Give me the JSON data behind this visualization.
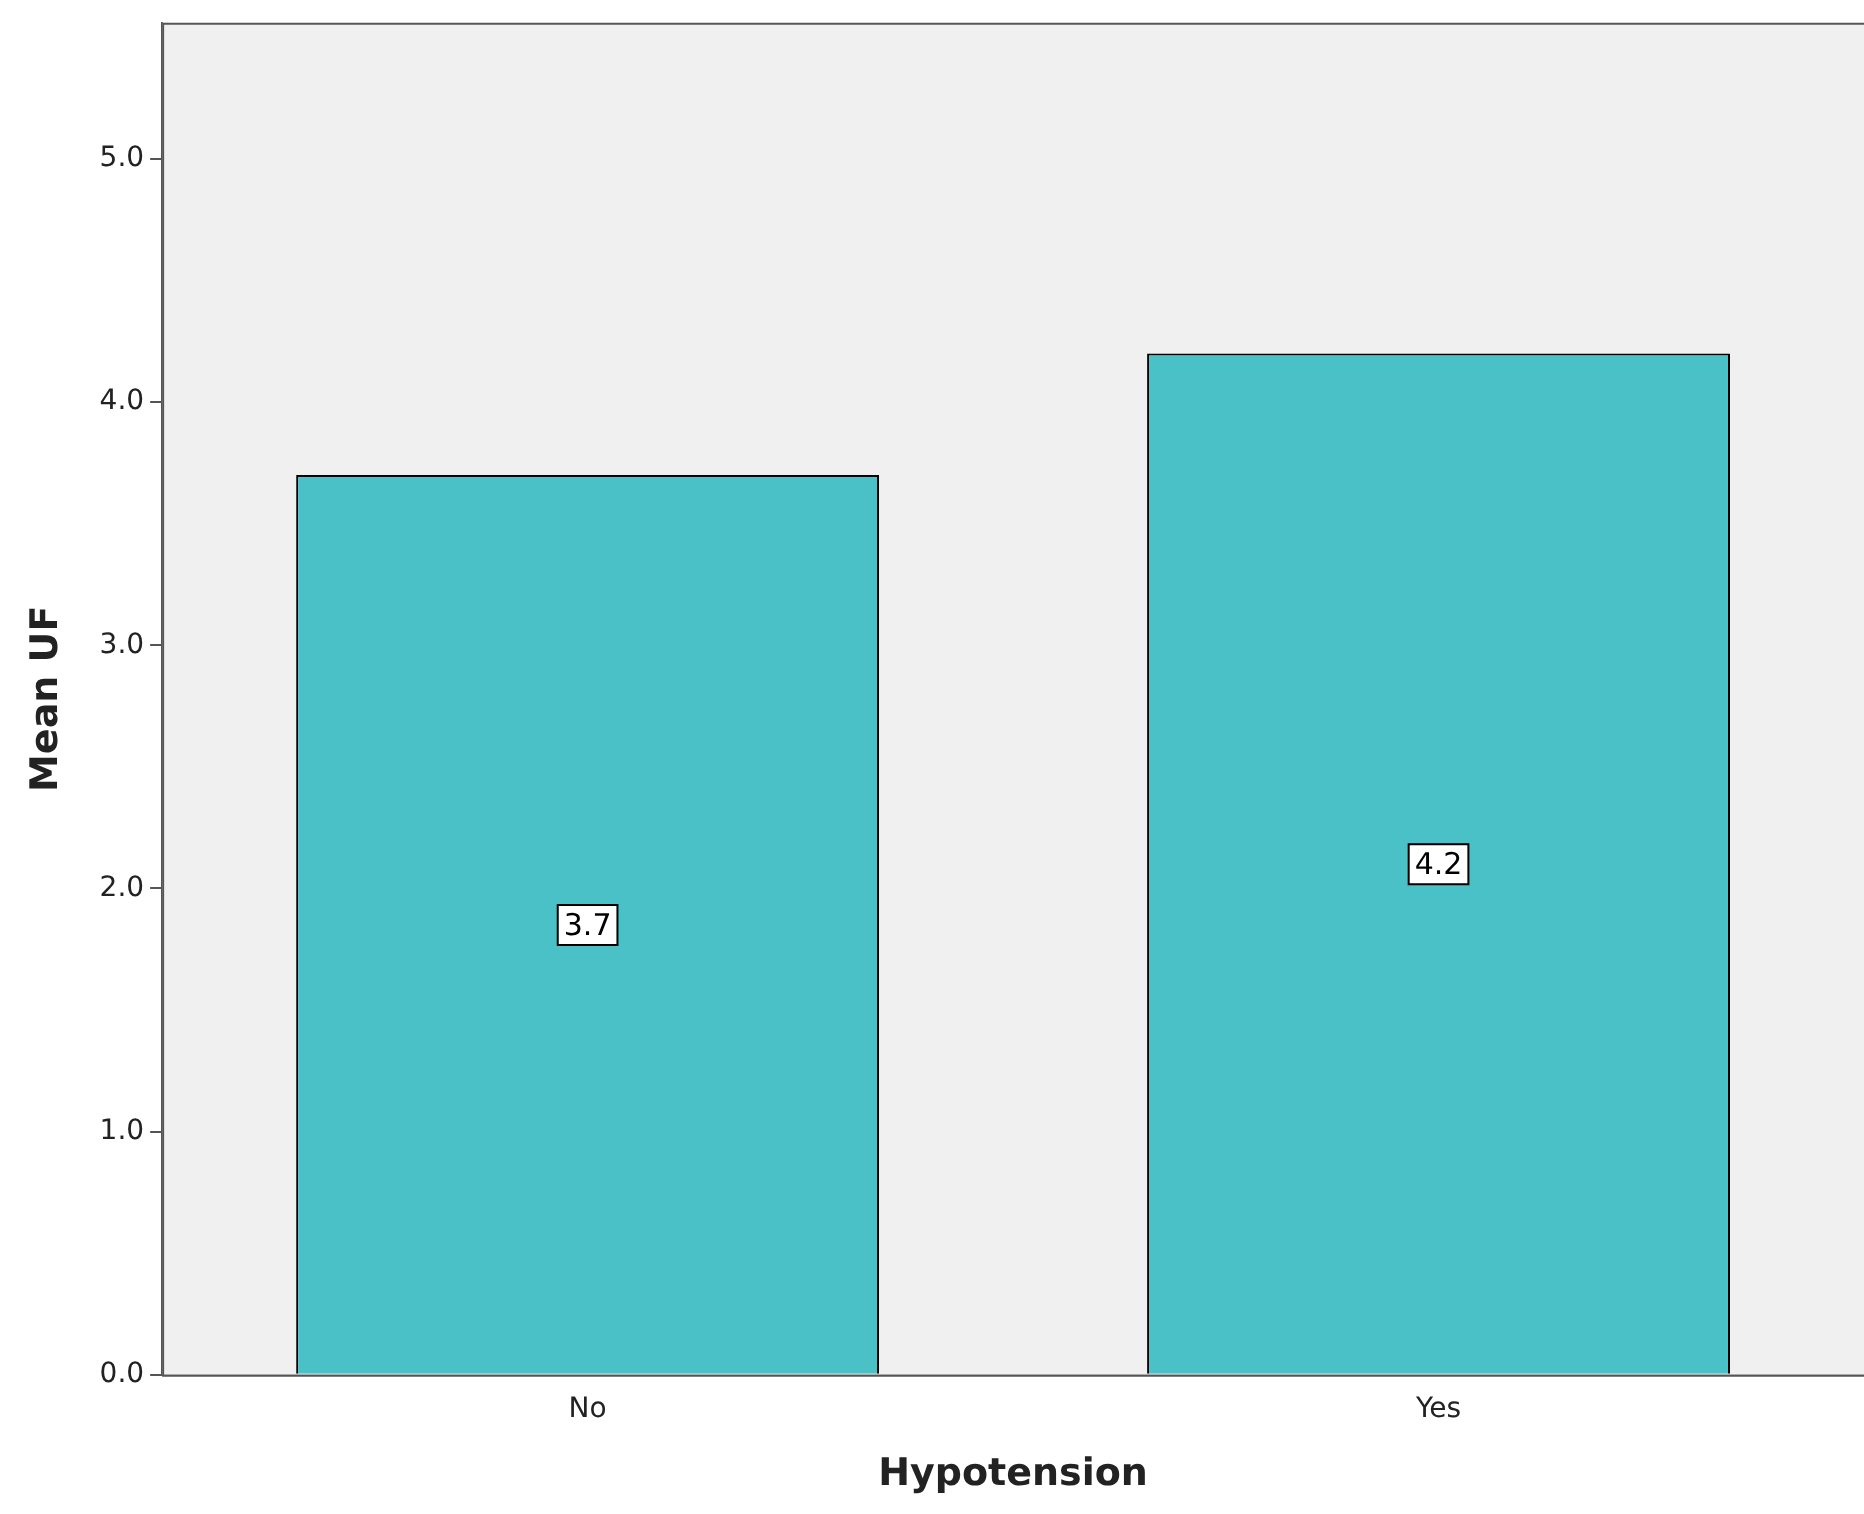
{
  "chart_data": {
    "type": "bar",
    "xlabel": "Hypotension",
    "ylabel": "Mean UF",
    "categories": [
      "No",
      "Yes"
    ],
    "values": [
      3.7,
      4.2
    ],
    "color": "#49c1c6",
    "ylim": [
      0,
      5.56
    ],
    "yticks": [
      {
        "value": 0,
        "label": "0.0"
      },
      {
        "value": 1,
        "label": "1.0"
      },
      {
        "value": 2,
        "label": "2.0"
      },
      {
        "value": 3,
        "label": "3.0"
      },
      {
        "value": 4,
        "label": "4.0"
      },
      {
        "value": 5,
        "label": "5.0"
      }
    ],
    "data_labels": true
  }
}
